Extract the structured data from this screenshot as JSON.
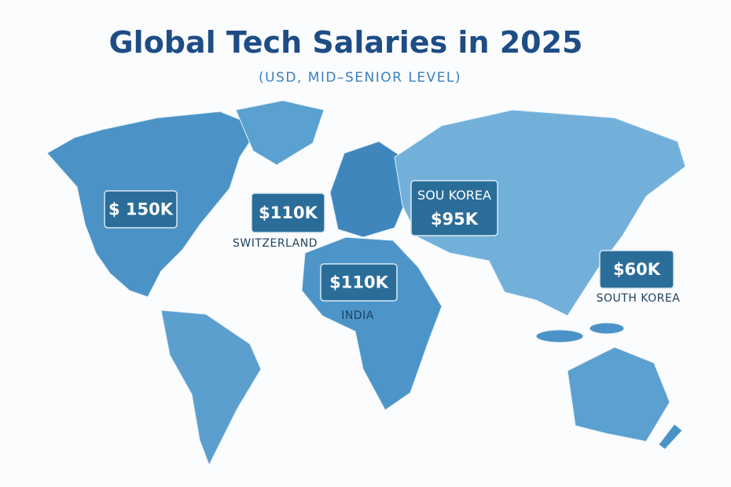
{
  "header": {
    "title": "Global Tech Salaries in 2025",
    "subtitle": "(USD, MID–SENIOR LEVEL)"
  },
  "callouts": [
    {
      "value": "$ 150K"
    },
    {
      "value": "$110K",
      "label": "SWITZERLAND"
    },
    {
      "heading": "SOU KOREA",
      "value": "$95K"
    },
    {
      "value": "$110K",
      "label": "INDIA"
    },
    {
      "value": "$60K",
      "label": "SOUTH KOREA"
    }
  ]
}
